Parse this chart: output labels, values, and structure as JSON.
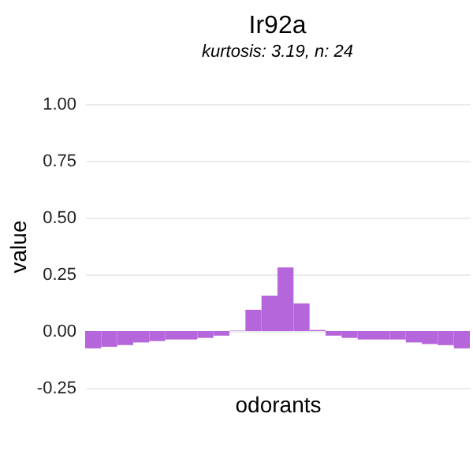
{
  "chart_data": {
    "type": "bar",
    "title": "Ir92a",
    "subtitle": "kurtosis: 3.19, n: 24",
    "xlabel": "odorants",
    "ylabel": "value",
    "categories": [
      null,
      null,
      null,
      null,
      null,
      null,
      null,
      null,
      null,
      null,
      null,
      null,
      null,
      null,
      null,
      null,
      null,
      null,
      null,
      null,
      null,
      null,
      null,
      null
    ],
    "values": [
      -0.076,
      -0.069,
      -0.062,
      -0.05,
      -0.044,
      -0.037,
      -0.037,
      -0.03,
      -0.02,
      0.002,
      0.094,
      0.156,
      0.28,
      0.122,
      0.005,
      -0.02,
      -0.03,
      -0.037,
      -0.037,
      -0.037,
      -0.05,
      -0.057,
      -0.062,
      -0.076
    ],
    "color": "#b666db",
    "ylim": [
      -0.25,
      1
    ],
    "yticks": [
      {
        "value": -0.25,
        "label": "-0.25"
      },
      {
        "value": 0,
        "label": "0.00"
      },
      {
        "value": 0.25,
        "label": "0.25"
      },
      {
        "value": 0.5,
        "label": "0.50"
      },
      {
        "value": 0.75,
        "label": "0.75"
      },
      {
        "value": 1,
        "label": "1.00"
      }
    ],
    "grid": "y"
  }
}
